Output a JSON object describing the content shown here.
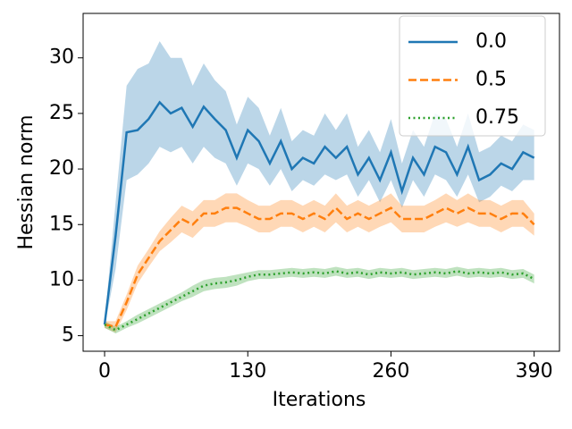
{
  "chart_data": {
    "type": "line",
    "xlabel": "Iterations",
    "ylabel": "Hessian norm",
    "x": [
      0,
      10,
      20,
      30,
      40,
      50,
      60,
      70,
      80,
      90,
      100,
      110,
      120,
      130,
      140,
      150,
      160,
      170,
      180,
      190,
      200,
      210,
      220,
      230,
      240,
      250,
      260,
      270,
      280,
      290,
      300,
      310,
      320,
      330,
      340,
      350,
      360,
      370,
      380,
      390
    ],
    "xlim": [
      -19.5,
      413
    ],
    "xticks": [
      0,
      130,
      260,
      390
    ],
    "ylim": [
      3.6,
      34
    ],
    "yticks": [
      5,
      10,
      15,
      20,
      25,
      30
    ],
    "legend": "upper right",
    "series": [
      {
        "name": "0.0",
        "color": "#1f77b4",
        "dash": "solid",
        "values": [
          6,
          14,
          23.3,
          23.5,
          24.5,
          26,
          25,
          25.5,
          23.8,
          25.6,
          24.5,
          23.5,
          21,
          23.5,
          22.5,
          20.5,
          22.5,
          20,
          21,
          20.5,
          22,
          21,
          22,
          19.5,
          21,
          19,
          21.5,
          18,
          21,
          19.5,
          22,
          21.5,
          19.5,
          22,
          19,
          19.5,
          20.5,
          20,
          21.5,
          21
        ],
        "lower": [
          5.8,
          11,
          19,
          19.5,
          20.5,
          22,
          21.5,
          22,
          20.5,
          22,
          21,
          20.5,
          18.5,
          20.5,
          20,
          18.5,
          20,
          18,
          19,
          18.5,
          19.5,
          19,
          19.5,
          17.5,
          19,
          17,
          19,
          16.5,
          19,
          17.5,
          19.5,
          19,
          17.5,
          19.5,
          17,
          17.5,
          18.5,
          18,
          19,
          19
        ],
        "upper": [
          6.2,
          17,
          27.5,
          29,
          29.5,
          31.5,
          30,
          30,
          27.5,
          29.5,
          28,
          27,
          24,
          26.5,
          25.5,
          23,
          25.5,
          22.5,
          23.5,
          23,
          25,
          23.5,
          25,
          22,
          23.5,
          21.5,
          24.5,
          20.5,
          23.5,
          22,
          25,
          24.5,
          22,
          25,
          21.5,
          22,
          23,
          22.5,
          24,
          23.5
        ]
      },
      {
        "name": "0.5",
        "color": "#ff7f0e",
        "dash": "dashed",
        "values": [
          6,
          5.8,
          8,
          10.5,
          12,
          13.5,
          14.5,
          15.5,
          15,
          16,
          16,
          16.5,
          16.5,
          16,
          15.5,
          15.5,
          16,
          16,
          15.5,
          16,
          15.5,
          16.5,
          15.5,
          16,
          15.5,
          16,
          16.5,
          15.5,
          15.5,
          15.5,
          16,
          16.5,
          16,
          16.5,
          16,
          16,
          15.5,
          16,
          16,
          15
        ],
        "lower": [
          5.7,
          5.3,
          7.3,
          9.7,
          11.2,
          12.6,
          13.4,
          14.3,
          13.8,
          14.8,
          14.8,
          15.2,
          15.2,
          14.8,
          14.3,
          14.3,
          14.8,
          14.8,
          14.3,
          14.8,
          14.3,
          15.2,
          14.3,
          14.8,
          14.3,
          14.8,
          15.2,
          14.3,
          14.3,
          14.3,
          14.8,
          15.2,
          14.8,
          15.2,
          14.8,
          14.8,
          14.3,
          14.8,
          14.8,
          14
        ],
        "upper": [
          6.3,
          6.3,
          8.7,
          11.3,
          12.8,
          14.4,
          15.6,
          16.7,
          16.2,
          17.2,
          17.2,
          17.8,
          17.8,
          17.2,
          16.7,
          16.7,
          17.2,
          17.2,
          16.7,
          17.2,
          16.7,
          17.8,
          16.7,
          17.2,
          16.7,
          17.2,
          17.8,
          16.7,
          16.7,
          16.7,
          17.2,
          17.8,
          17.2,
          17.8,
          17.2,
          17.2,
          16.7,
          17.2,
          17.2,
          16
        ]
      },
      {
        "name": "0.75",
        "color": "#2ca02c",
        "dash": "dotted",
        "values": [
          6,
          5.5,
          6,
          6.5,
          7,
          7.5,
          8,
          8.5,
          9,
          9.5,
          9.7,
          9.8,
          10,
          10.3,
          10.5,
          10.5,
          10.6,
          10.7,
          10.6,
          10.7,
          10.6,
          10.8,
          10.6,
          10.7,
          10.5,
          10.7,
          10.6,
          10.7,
          10.5,
          10.6,
          10.7,
          10.6,
          10.8,
          10.6,
          10.7,
          10.6,
          10.7,
          10.5,
          10.6,
          10.1
        ],
        "lower": [
          5.7,
          5.2,
          5.7,
          6.1,
          6.6,
          7.1,
          7.6,
          8.1,
          8.5,
          9,
          9.2,
          9.3,
          9.5,
          9.9,
          10.1,
          10.1,
          10.2,
          10.3,
          10.2,
          10.3,
          10.2,
          10.4,
          10.2,
          10.3,
          10.1,
          10.3,
          10.2,
          10.3,
          10.1,
          10.2,
          10.3,
          10.2,
          10.4,
          10.2,
          10.3,
          10.2,
          10.3,
          10.1,
          10.2,
          9.7
        ],
        "upper": [
          6.3,
          5.8,
          6.3,
          6.9,
          7.4,
          7.9,
          8.4,
          8.9,
          9.5,
          10,
          10.2,
          10.3,
          10.5,
          10.7,
          10.9,
          10.9,
          11,
          11.1,
          11,
          11.1,
          11,
          11.2,
          11,
          11.1,
          10.9,
          11.1,
          11,
          11.1,
          10.9,
          11,
          11.1,
          11,
          11.2,
          11,
          11.1,
          11,
          11.1,
          10.9,
          11,
          10.5
        ]
      }
    ]
  }
}
